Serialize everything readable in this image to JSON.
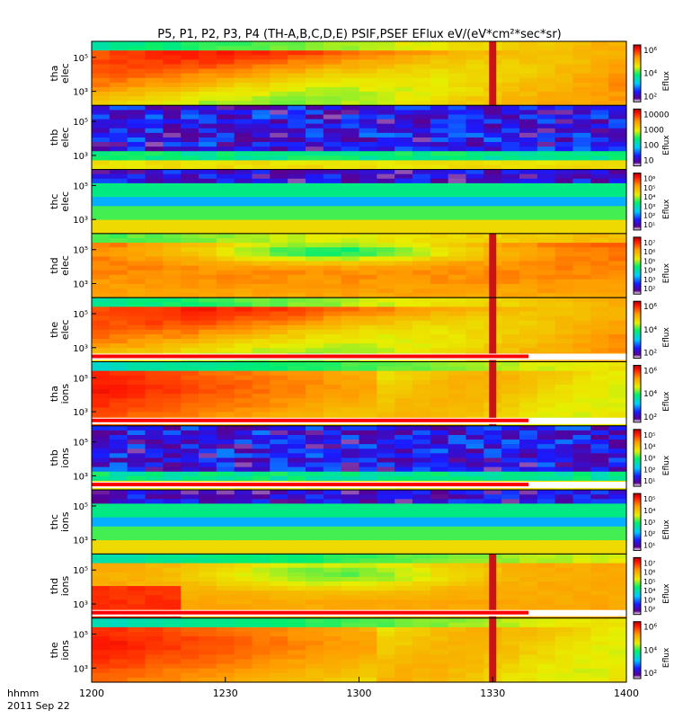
{
  "chart_data": {
    "type": "heatmap",
    "title": "P5, P1, P2, P3, P4 (TH-A,B,C,D,E) PSIF,PSEF EFlux eV/(eV*cm²*sec*sr)",
    "x_axis": {
      "tick_labels": [
        "1200",
        "1230",
        "1300",
        "1330",
        "1400"
      ],
      "range": [
        "1200",
        "1400"
      ],
      "unit_label": "hhmm",
      "date_label": "2011 Sep 22"
    },
    "colorbar_label": "Eflux",
    "panels": [
      {
        "id": "tha-elec",
        "label_line1": "tha",
        "label_line2": "elec",
        "y_ticks": [
          "10⁵",
          "10³"
        ],
        "cbar_ticks": [
          "10⁶",
          "10⁴",
          "10²"
        ],
        "pattern": "hot",
        "has_gap_bar": false
      },
      {
        "id": "thb-elec",
        "label_line1": "thb",
        "label_line2": "elec",
        "y_ticks": [
          "10⁵",
          "10³"
        ],
        "cbar_ticks": [
          "10000",
          "1000",
          "100",
          "10"
        ],
        "pattern": "low",
        "has_gap_bar": false
      },
      {
        "id": "thc-elec",
        "label_line1": "thc",
        "label_line2": "elec",
        "y_ticks": [
          "10⁵",
          "10³"
        ],
        "cbar_ticks": [
          "10⁶",
          "10⁵",
          "10⁴",
          "10³",
          "10²",
          "10¹"
        ],
        "pattern": "bands",
        "has_gap_bar": false
      },
      {
        "id": "thd-elec",
        "label_line1": "thd",
        "label_line2": "elec",
        "y_ticks": [
          "10⁵",
          "10³"
        ],
        "cbar_ticks": [
          "10⁷",
          "10⁶",
          "10⁵",
          "10⁴",
          "10³",
          "10²"
        ],
        "pattern": "hotmid",
        "has_gap_bar": false
      },
      {
        "id": "the-elec",
        "label_line1": "the",
        "label_line2": "elec",
        "y_ticks": [
          "10⁵",
          "10³"
        ],
        "cbar_ticks": [
          "10⁶",
          "10⁴",
          "10²"
        ],
        "pattern": "hot",
        "has_gap_bar": true
      },
      {
        "id": "tha-ions",
        "label_line1": "tha",
        "label_line2": "ions",
        "y_ticks": [
          "10⁵",
          "10³"
        ],
        "cbar_ticks": [
          "10⁶",
          "10⁴",
          "10²"
        ],
        "pattern": "ions",
        "has_gap_bar": true
      },
      {
        "id": "thb-ions",
        "label_line1": "thb",
        "label_line2": "ions",
        "y_ticks": [
          "10⁵",
          "10³"
        ],
        "cbar_ticks": [
          "10⁵",
          "10⁴",
          "10³",
          "10²",
          "10¹"
        ],
        "pattern": "low",
        "has_gap_bar": true
      },
      {
        "id": "thc-ions",
        "label_line1": "thc",
        "label_line2": "ions",
        "y_ticks": [
          "10⁵",
          "10³"
        ],
        "cbar_ticks": [
          "10⁵",
          "10⁴",
          "10³",
          "10²",
          "10¹"
        ],
        "pattern": "bands",
        "has_gap_bar": false
      },
      {
        "id": "thd-ions",
        "label_line1": "thd",
        "label_line2": "ions",
        "y_ticks": [
          "10⁵",
          "10³"
        ],
        "cbar_ticks": [
          "10⁷",
          "10⁶",
          "10⁵",
          "10⁴",
          "10³",
          "10²"
        ],
        "pattern": "ionsmid",
        "has_gap_bar": true
      },
      {
        "id": "the-ions",
        "label_line1": "the",
        "label_line2": "ions",
        "y_ticks": [
          "10⁵",
          "10³"
        ],
        "cbar_ticks": [
          "10⁶",
          "10⁴",
          "10²"
        ],
        "pattern": "ions",
        "has_gap_bar": false
      }
    ],
    "event_marker_time": "1330",
    "grid": false,
    "legend": "colorbar-right"
  }
}
